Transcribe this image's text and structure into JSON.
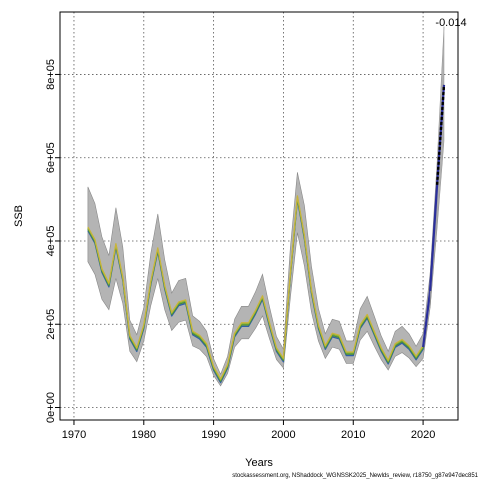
{
  "chart_data": {
    "type": "line",
    "title": "",
    "xlabel": "Years",
    "ylabel": "SSB",
    "xlim": [
      1968,
      2025
    ],
    "ylim": [
      -30000,
      950000
    ],
    "x_ticks": [
      1970,
      1980,
      1990,
      2000,
      2010,
      2020
    ],
    "y_ticks": [
      0,
      200000,
      400000,
      600000,
      800000
    ],
    "y_tick_labels": [
      "0e+00",
      "2e+05",
      "4e+05",
      "6e+05",
      "8e+05"
    ],
    "grid": "dotted",
    "legend": "none",
    "annotation": "-0.014",
    "footer": "stockassessment.org, NShaddock_WGNSSK2025_Newlds_review, r18750_g87e947dec851",
    "colors": {
      "band": "#b4b4b4",
      "band_edge": "#888888",
      "series": [
        "#2f5fa8",
        "#4a8a3a",
        "#7ab23a",
        "#c9b43a"
      ],
      "recent": "#2b2f9b",
      "forecast_line": "#000000",
      "forecast_band": "#a8a8a8"
    },
    "series": [
      {
        "x": [
          1972,
          1973,
          1974,
          1975,
          1976,
          1977,
          1978,
          1979,
          1980,
          1981,
          1982,
          1983,
          1984,
          1985,
          1986,
          1987,
          1988,
          1989,
          1990,
          1991,
          1992,
          1993,
          1994,
          1995,
          1996,
          1997,
          1998,
          1999,
          2000,
          2001,
          2002,
          2003,
          2004,
          2005,
          2006,
          2007,
          2008,
          2009,
          2010,
          2011,
          2012,
          2013,
          2014,
          2015,
          2016,
          2017,
          2018,
          2019,
          2020,
          2021,
          2022
        ],
        "y": [
          430000,
          400000,
          330000,
          295000,
          390000,
          310000,
          170000,
          140000,
          195000,
          300000,
          380000,
          290000,
          225000,
          250000,
          255000,
          180000,
          170000,
          150000,
          95000,
          65000,
          100000,
          175000,
          200000,
          200000,
          230000,
          265000,
          200000,
          140000,
          115000,
          320000,
          505000,
          410000,
          280000,
          195000,
          145000,
          175000,
          170000,
          130000,
          130000,
          195000,
          220000,
          180000,
          140000,
          110000,
          150000,
          160000,
          145000,
          120000,
          145000,
          280000,
          535000
        ],
        "lower": [
          350000,
          320000,
          260000,
          235000,
          310000,
          250000,
          135000,
          110000,
          160000,
          245000,
          310000,
          235000,
          185000,
          205000,
          210000,
          148000,
          140000,
          122000,
          77000,
          52000,
          82000,
          145000,
          165000,
          165000,
          190000,
          220000,
          165000,
          115000,
          95000,
          265000,
          420000,
          340000,
          230000,
          160000,
          118000,
          145000,
          140000,
          106000,
          106000,
          162000,
          183000,
          148000,
          115000,
          90000,
          123000,
          132000,
          119000,
          98000,
          118000,
          240000,
          450000
        ],
        "upper": [
          530000,
          490000,
          410000,
          365000,
          480000,
          385000,
          210000,
          175000,
          240000,
          370000,
          465000,
          355000,
          275000,
          305000,
          310000,
          220000,
          207000,
          183000,
          117000,
          80000,
          123000,
          212000,
          243000,
          243000,
          278000,
          320000,
          242000,
          170000,
          140000,
          385000,
          565000,
          485000,
          340000,
          238000,
          177000,
          212000,
          207000,
          160000,
          160000,
          237000,
          267000,
          220000,
          172000,
          135000,
          183000,
          195000,
          177000,
          147000,
          177000,
          320000,
          560000
        ]
      }
    ],
    "forecast": {
      "x": [
        2021,
        2022,
        2023
      ],
      "y": [
        280000,
        535000,
        775000
      ],
      "lower": [
        240000,
        430000,
        640000
      ],
      "upper": [
        320000,
        590000,
        915000
      ]
    }
  }
}
